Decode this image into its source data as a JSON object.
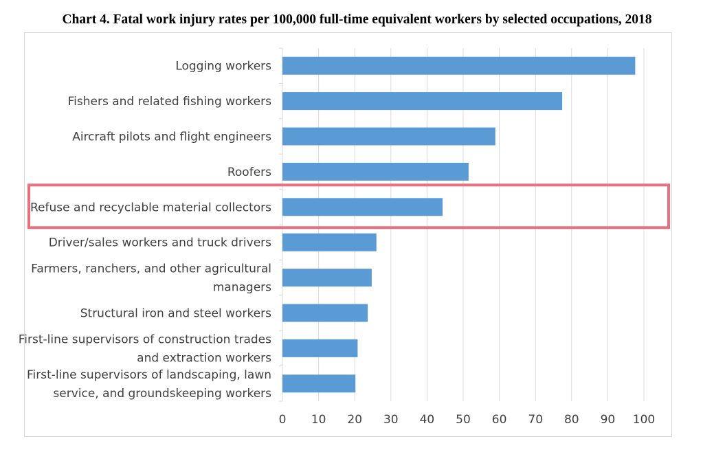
{
  "title": "Chart 4. Fatal work injury rates per 100,000 full-time equivalent workers by selected occupations, 2018",
  "chart_data": {
    "type": "bar",
    "orientation": "horizontal",
    "categories": [
      [
        "Logging workers"
      ],
      [
        "Fishers and related fishing workers"
      ],
      [
        "Aircraft pilots and flight engineers"
      ],
      [
        "Roofers"
      ],
      [
        "Refuse and recyclable material collectors"
      ],
      [
        "Driver/sales workers and truck drivers"
      ],
      [
        "Farmers, ranchers, and other agricultural",
        "managers"
      ],
      [
        "Structural iron and steel workers"
      ],
      [
        "First-line supervisors of construction trades",
        "and extraction workers"
      ],
      [
        "First-line supervisors of landscaping, lawn",
        "service, and groundskeeping workers"
      ]
    ],
    "values": [
      97.6,
      77.4,
      58.9,
      51.5,
      44.3,
      26.0,
      24.7,
      23.6,
      20.8,
      20.2
    ],
    "xlim": [
      0,
      100
    ],
    "xticks": [
      "0",
      "10",
      "20",
      "30",
      "40",
      "50",
      "60",
      "70",
      "80",
      "90",
      "100"
    ],
    "grid": true,
    "highlighted_category_index": 4,
    "colors": {
      "bar": "#5b9bd5",
      "grid": "#d9d9d9",
      "highlight_box": "#e8707e",
      "text": "#404040"
    }
  }
}
